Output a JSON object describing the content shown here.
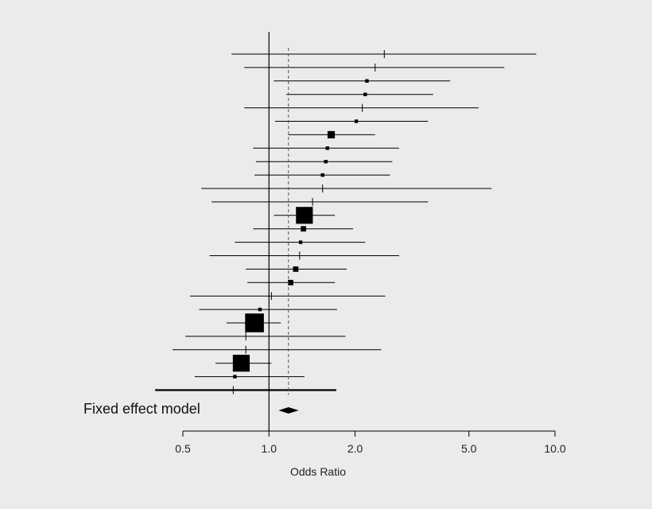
{
  "chart_data": {
    "type": "forest",
    "xlabel": "Odds Ratio",
    "x_scale": "log",
    "xlim": [
      0.5,
      10.0
    ],
    "x_ticks": [
      "0.5",
      "1.0",
      "2.0",
      "5.0",
      "10.0"
    ],
    "x_tick_values": [
      0.5,
      1.0,
      2.0,
      5.0,
      10.0
    ],
    "null_line": 1.0,
    "pooled_estimate": 1.17,
    "studies": [
      {
        "or": 2.53,
        "lower": 0.74,
        "upper": 8.6,
        "weight": 0
      },
      {
        "or": 2.35,
        "lower": 0.82,
        "upper": 6.65,
        "weight": 0
      },
      {
        "or": 2.2,
        "lower": 1.04,
        "upper": 4.3,
        "weight": 1
      },
      {
        "or": 2.17,
        "lower": 1.15,
        "upper": 3.75,
        "weight": 1
      },
      {
        "or": 2.12,
        "lower": 0.82,
        "upper": 5.4,
        "weight": 0
      },
      {
        "or": 2.02,
        "lower": 1.05,
        "upper": 3.6,
        "weight": 1
      },
      {
        "or": 1.65,
        "lower": 1.17,
        "upper": 2.35,
        "weight": 3
      },
      {
        "or": 1.6,
        "lower": 0.88,
        "upper": 2.85,
        "weight": 1
      },
      {
        "or": 1.58,
        "lower": 0.9,
        "upper": 2.7,
        "weight": 1
      },
      {
        "or": 1.54,
        "lower": 0.89,
        "upper": 2.65,
        "weight": 1
      },
      {
        "or": 1.54,
        "lower": 0.58,
        "upper": 6.0,
        "weight": 0
      },
      {
        "or": 1.42,
        "lower": 0.63,
        "upper": 3.6,
        "weight": 0
      },
      {
        "or": 1.33,
        "lower": 1.04,
        "upper": 1.7,
        "weight": 8
      },
      {
        "or": 1.32,
        "lower": 0.88,
        "upper": 1.97,
        "weight": 2
      },
      {
        "or": 1.29,
        "lower": 0.76,
        "upper": 2.17,
        "weight": 1
      },
      {
        "or": 1.28,
        "lower": 0.62,
        "upper": 2.85,
        "weight": 0
      },
      {
        "or": 1.24,
        "lower": 0.83,
        "upper": 1.87,
        "weight": 2
      },
      {
        "or": 1.19,
        "lower": 0.84,
        "upper": 1.7,
        "weight": 2
      },
      {
        "or": 1.02,
        "lower": 0.53,
        "upper": 2.55,
        "weight": 0
      },
      {
        "or": 0.93,
        "lower": 0.57,
        "upper": 1.73,
        "weight": 1
      },
      {
        "or": 0.89,
        "lower": 0.71,
        "upper": 1.1,
        "weight": 9
      },
      {
        "or": 0.83,
        "lower": 0.51,
        "upper": 1.85,
        "weight": 0
      },
      {
        "or": 0.83,
        "lower": 0.46,
        "upper": 2.47,
        "weight": 0
      },
      {
        "or": 0.8,
        "lower": 0.65,
        "upper": 1.02,
        "weight": 8
      },
      {
        "or": 0.76,
        "lower": 0.55,
        "upper": 1.33,
        "weight": 1
      },
      {
        "or": 0.75,
        "lower": 0.4,
        "upper": 1.72,
        "weight": 0
      }
    ],
    "summary": {
      "label": "Fixed effect model",
      "or": 1.17,
      "lower": 1.08,
      "upper": 1.27
    },
    "colors": {
      "ink": "#000000",
      "background": "#ebebeb",
      "reference_line": "#555555"
    }
  }
}
